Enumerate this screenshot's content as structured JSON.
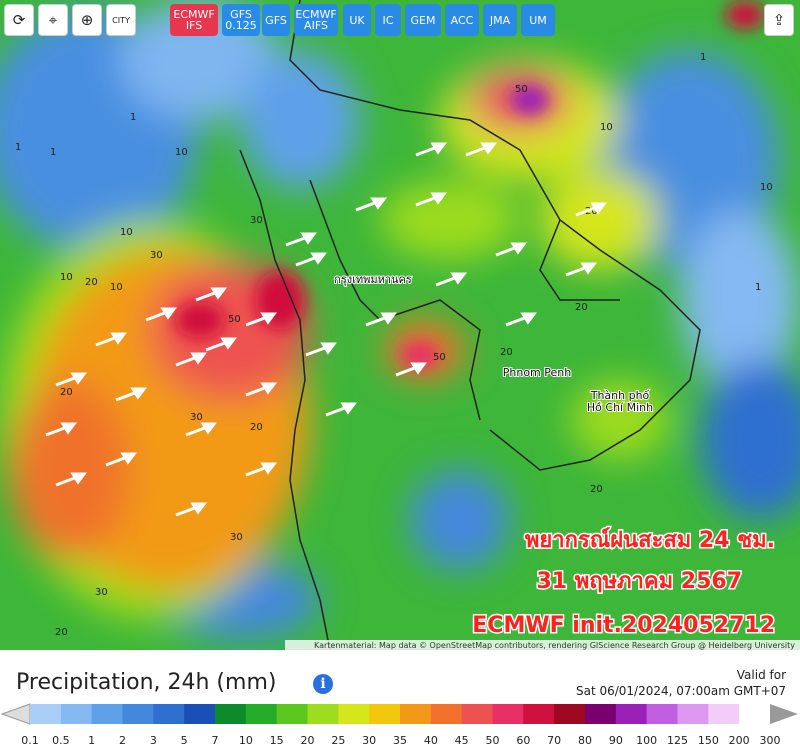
{
  "toolbar": {
    "icons": [
      "CITY"
    ],
    "models": [
      "ECMWF IFS",
      "GFS 0.125",
      "GFS",
      "ECMWF AIFS",
      "UK",
      "IC",
      "GEM",
      "ACC",
      "JMA",
      "UM"
    ],
    "active": "ECMWF IFS"
  },
  "map": {
    "overlay": [
      "พยากรณ์ฝนสะสม 24 ชม.",
      "31 พฤษภาคม 2567",
      "ECMWF init.2024052712"
    ],
    "cities": [
      "กรุงเทพมหานคร",
      "Phnom Penh",
      "Thành phố",
      "Hồ Chí Minh"
    ],
    "contour_labels": [
      1,
      1,
      10,
      10,
      20,
      20,
      30,
      30,
      50,
      50,
      20,
      10,
      20,
      30,
      10,
      1,
      20,
      10,
      30,
      20,
      1,
      50,
      20,
      10,
      30,
      20,
      1
    ],
    "attribution": "Kartenmaterial: Map data © OpenStreetMap contributors, rendering GIScience Research Group @ Heidelberg University"
  },
  "footer": {
    "title": "Precipitation, 24h (mm)",
    "valid_label": "Valid for",
    "valid_time": "Sat 06/01/2024, 07:00am GMT+07"
  },
  "legend": {
    "ticks": [
      0.1,
      0.5,
      1,
      2,
      3,
      5,
      7,
      10,
      15,
      20,
      25,
      30,
      35,
      40,
      45,
      50,
      60,
      70,
      80,
      90,
      100,
      125,
      150,
      200,
      300
    ],
    "colors": [
      "#a9cff7",
      "#84b9f1",
      "#5ea1e9",
      "#4488dd",
      "#2e6fd0",
      "#1a4fb5",
      "#0d8a2c",
      "#25ad2a",
      "#5cc81f",
      "#9ddc1f",
      "#d6e61c",
      "#f2c80e",
      "#f29a18",
      "#f0722c",
      "#ee5250",
      "#e83066",
      "#d0103e",
      "#9e0820",
      "#7a0070",
      "#9a20b8",
      "#c060e0",
      "#df98f0",
      "#f2cdf8",
      "#ffffff"
    ]
  }
}
